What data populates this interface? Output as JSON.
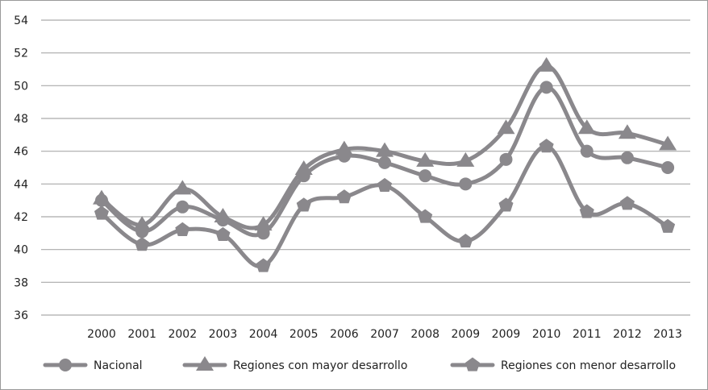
{
  "chart_data": {
    "type": "line",
    "title": "",
    "xlabel": "",
    "ylabel": "",
    "ylim": [
      36,
      54
    ],
    "yticks": [
      36,
      38,
      40,
      42,
      44,
      46,
      48,
      50,
      52,
      54
    ],
    "grid": "horizontal",
    "legend_position": "bottom",
    "categories": [
      "2000",
      "2001",
      "2002",
      "2003",
      "2004",
      "2005",
      "2006",
      "2007",
      "2008",
      "2009",
      "2009",
      "2010",
      "2011",
      "2012",
      "2013"
    ],
    "line_color": "#8a888c",
    "series": [
      {
        "name": "Nacional",
        "marker": "circle",
        "values": [
          43.0,
          41.1,
          42.6,
          41.8,
          41.0,
          44.5,
          45.7,
          45.3,
          44.5,
          44.0,
          45.5,
          49.9,
          46.0,
          45.6,
          45.0
        ]
      },
      {
        "name": "Regiones con mayor desarrollo",
        "marker": "triangle",
        "values": [
          43.1,
          41.5,
          43.7,
          42.0,
          41.5,
          44.9,
          46.1,
          46.0,
          45.4,
          45.4,
          47.4,
          51.2,
          47.4,
          47.1,
          46.4
        ]
      },
      {
        "name": "Regiones con menor desarrollo",
        "marker": "pentagon",
        "values": [
          42.2,
          40.3,
          41.2,
          40.9,
          39.0,
          42.7,
          43.2,
          43.9,
          42.0,
          40.5,
          42.7,
          46.3,
          42.3,
          42.8,
          41.4
        ]
      }
    ]
  }
}
